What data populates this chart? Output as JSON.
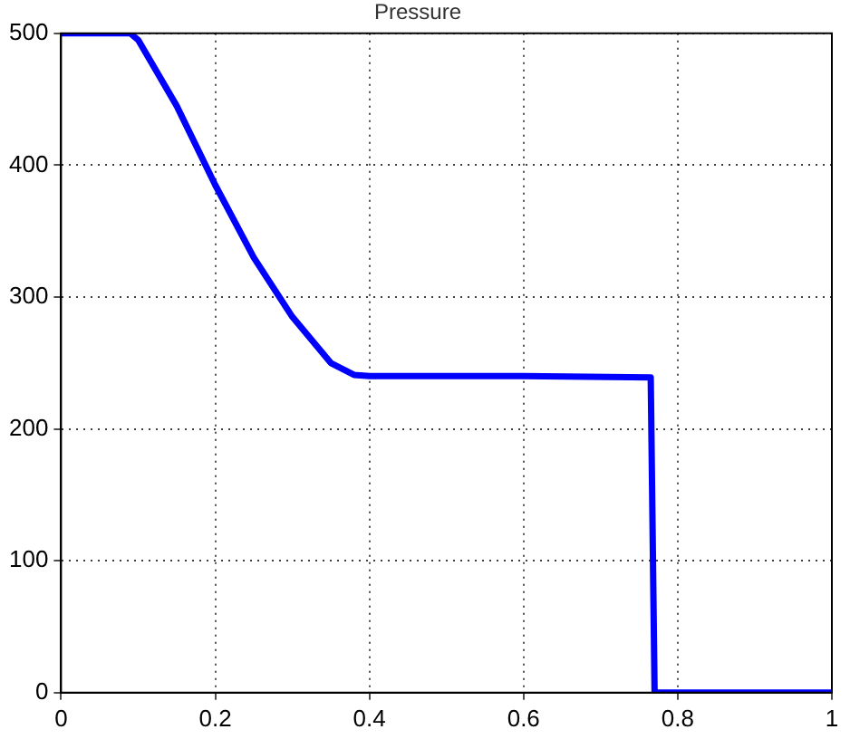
{
  "chart_data": {
    "type": "line",
    "title": "Pressure",
    "x": [
      0,
      0.09,
      0.1,
      0.15,
      0.2,
      0.25,
      0.3,
      0.35,
      0.38,
      0.4,
      0.6,
      0.765,
      0.77,
      1
    ],
    "series": [
      {
        "color": "#0000ff",
        "values": [
          500,
          500,
          495,
          445,
          385,
          330,
          285,
          250,
          241,
          240,
          240,
          239,
          0,
          0
        ]
      }
    ],
    "xlim": [
      0,
      1
    ],
    "xticks": [
      0,
      0.2,
      0.4,
      0.6,
      0.8,
      1
    ],
    "ylim": [
      0,
      500
    ],
    "yticks": [
      0,
      100,
      200,
      300,
      400,
      500
    ],
    "grid": true,
    "marker": "none",
    "line_style": "solid"
  }
}
